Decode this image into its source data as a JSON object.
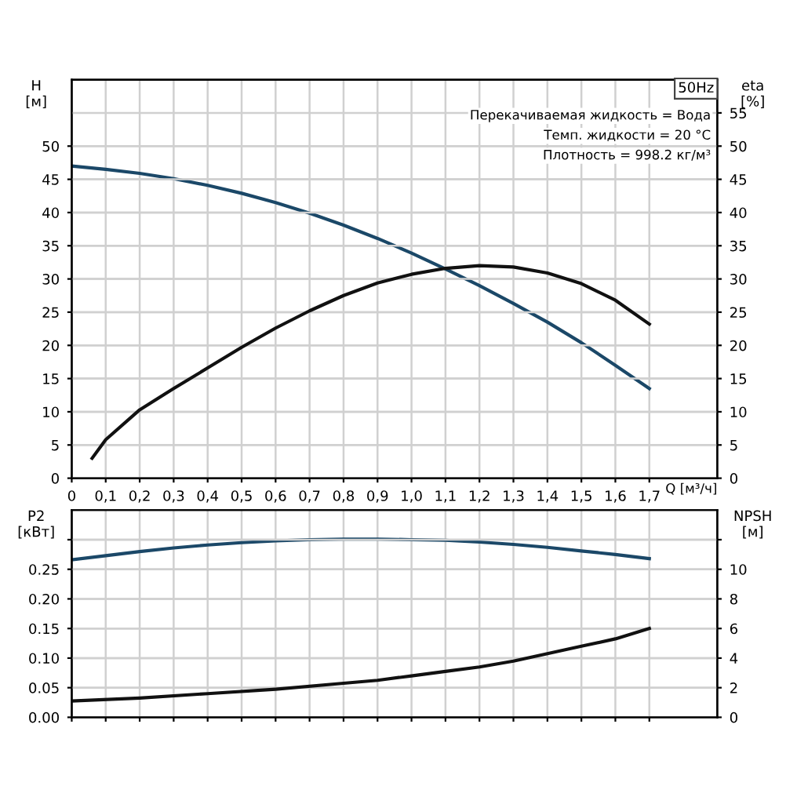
{
  "chart_data": [
    {
      "type": "line",
      "ylabel": "H\n[м]",
      "y2label": "eta\n[%]",
      "xlabel": "Q [м³/ч]",
      "annotations": [
        "50Hz",
        "Перекачиваемая жидкость = Вода",
        "Темп. жидкости = 20 °C",
        "Плотность = 998.2 кг/м³"
      ],
      "xlim": [
        0,
        1.9
      ],
      "xticks": [
        0,
        {
          "value": 0.1,
          "label": "0,1"
        },
        {
          "value": 0.2,
          "label": "0,2"
        },
        {
          "value": 0.3,
          "label": "0,3"
        },
        {
          "value": 0.4,
          "label": "0,4"
        },
        {
          "value": 0.5,
          "label": "0,5"
        },
        {
          "value": 0.6,
          "label": "0,6"
        },
        {
          "value": 0.7,
          "label": "0,7"
        },
        {
          "value": 0.8,
          "label": "0,8"
        },
        {
          "value": 0.9,
          "label": "0,9"
        },
        {
          "value": 1.0,
          "label": "1,0"
        },
        {
          "value": 1.1,
          "label": "1,1"
        },
        {
          "value": 1.2,
          "label": "1,2"
        },
        {
          "value": 1.3,
          "label": "1,3"
        },
        {
          "value": 1.4,
          "label": "1,4"
        },
        {
          "value": 1.5,
          "label": "1,5"
        },
        {
          "value": 1.6,
          "label": "1,6"
        },
        {
          "value": 1.7,
          "label": "1,7"
        }
      ],
      "ylim": [
        0,
        60
      ],
      "yticks": [
        0,
        5,
        10,
        15,
        20,
        25,
        30,
        35,
        40,
        45,
        50
      ],
      "y2lim": [
        0,
        60
      ],
      "y2ticks": [
        0,
        5,
        10,
        15,
        20,
        25,
        30,
        35,
        40,
        45,
        50,
        55
      ],
      "grid": true,
      "legend": false,
      "series": [
        {
          "color": "#1b4868",
          "x": [
            0,
            0.1,
            0.2,
            0.3,
            0.4,
            0.5,
            0.6,
            0.7,
            0.8,
            0.9,
            1.0,
            1.1,
            1.2,
            1.3,
            1.4,
            1.5,
            1.6,
            1.7
          ],
          "values": [
            47,
            46.5,
            45.9,
            45.1,
            44.1,
            42.9,
            41.5,
            39.9,
            38.1,
            36.1,
            33.9,
            31.5,
            29,
            26.3,
            23.5,
            20.4,
            17.0,
            13.5
          ]
        },
        {
          "color": "#111111",
          "axis": "y2",
          "x": [
            0.06,
            0.1,
            0.2,
            0.3,
            0.4,
            0.5,
            0.6,
            0.7,
            0.8,
            0.9,
            1.0,
            1.1,
            1.2,
            1.3,
            1.4,
            1.5,
            1.6,
            1.7
          ],
          "values": [
            3,
            5.8,
            10.3,
            13.5,
            16.6,
            19.7,
            22.6,
            25.2,
            27.5,
            29.4,
            30.7,
            31.6,
            32,
            31.8,
            30.9,
            29.3,
            26.8,
            23.2
          ]
        }
      ]
    },
    {
      "type": "line",
      "ylabel": "P2\n[кВт]",
      "y2label": "NPSH\n[м]",
      "tick_labels": "y",
      "xlim": [
        0,
        1.9
      ],
      "ylim": [
        0,
        0.35
      ],
      "yticks": [
        {
          "value": 0,
          "label": "0.00"
        },
        {
          "value": 0.05,
          "label": "0.05"
        },
        {
          "value": 0.1,
          "label": "0.10"
        },
        {
          "value": 0.15,
          "label": "0.15"
        },
        {
          "value": 0.2,
          "label": "0.20"
        },
        {
          "value": 0.25,
          "label": "0.25"
        },
        {
          "value": 0.3,
          "label": null
        }
      ],
      "y2lim": [
        0,
        14
      ],
      "y2ticks": [
        0,
        2,
        4,
        6,
        8,
        10,
        {
          "value": 12,
          "label": null
        }
      ],
      "grid": true,
      "legend": false,
      "series": [
        {
          "color": "#1b4868",
          "x": [
            0,
            0.1,
            0.2,
            0.3,
            0.4,
            0.5,
            0.6,
            0.7,
            0.8,
            0.9,
            1.0,
            1.1,
            1.2,
            1.3,
            1.4,
            1.5,
            1.6,
            1.7
          ],
          "values": [
            0.266,
            0.273,
            0.28,
            0.286,
            0.291,
            0.295,
            0.298,
            0.3,
            0.301,
            0.301,
            0.3,
            0.299,
            0.296,
            0.292,
            0.287,
            0.281,
            0.275,
            0.268
          ]
        },
        {
          "color": "#111111",
          "axis": "y2",
          "x": [
            0,
            0.2,
            0.4,
            0.6,
            0.8,
            0.9,
            1.0,
            1.1,
            1.2,
            1.3,
            1.4,
            1.5,
            1.6,
            1.7
          ],
          "values": [
            1.1,
            1.3,
            1.6,
            1.9,
            2.3,
            2.5,
            2.8,
            3.1,
            3.4,
            3.8,
            4.3,
            4.8,
            5.3,
            6.0
          ]
        }
      ]
    }
  ]
}
